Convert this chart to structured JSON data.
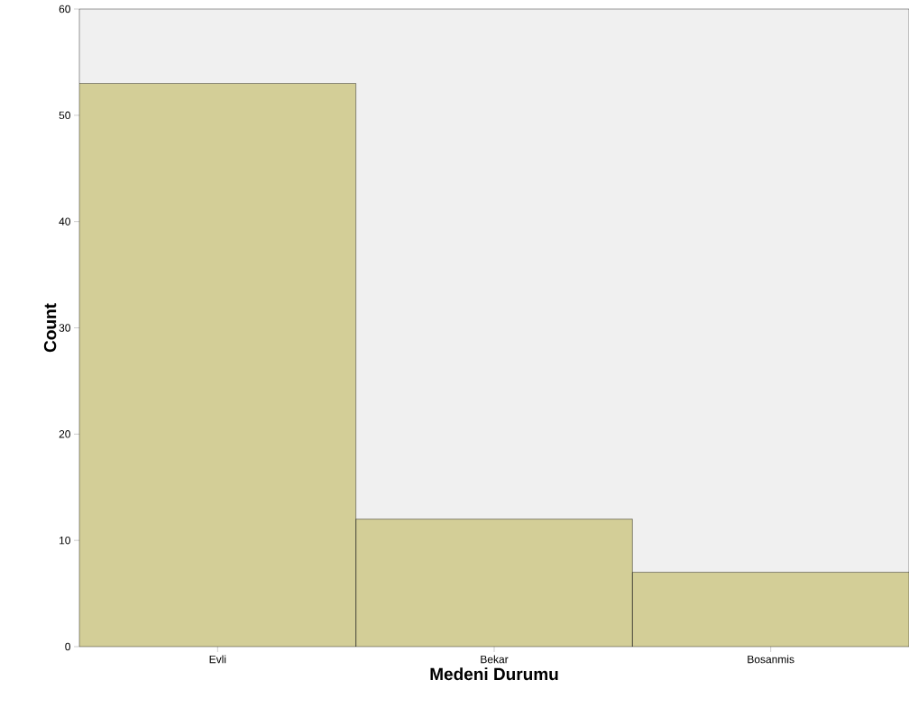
{
  "chart_data": {
    "type": "bar",
    "xlabel": "Medeni Durumu",
    "ylabel": "Count",
    "categories": [
      "Evli",
      "Bekar",
      "Bosanmis"
    ],
    "values": [
      53,
      12,
      7
    ],
    "color": "#d3ce97",
    "ylim": [
      0,
      60
    ],
    "yticks": [
      0,
      10,
      20,
      30,
      40,
      50,
      60
    ],
    "grid": false
  }
}
